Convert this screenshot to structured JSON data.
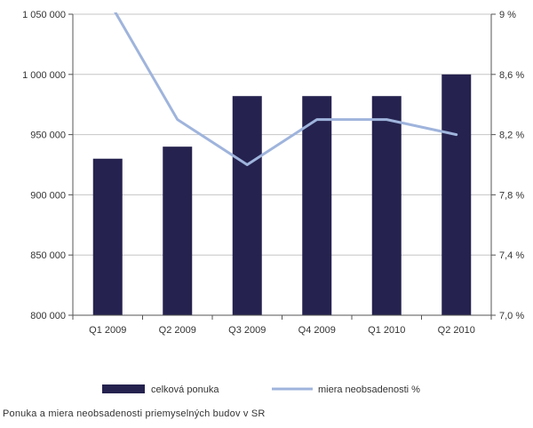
{
  "chart_data": {
    "type": "bar",
    "categories": [
      "Q1 2009",
      "Q2 2009",
      "Q3 2009",
      "Q4 2009",
      "Q1 2010",
      "Q2 2010"
    ],
    "series": [
      {
        "name": "celková ponuka",
        "type": "bar",
        "axis": "left",
        "values": [
          930000,
          940000,
          982000,
          982000,
          982000,
          1000000
        ]
      },
      {
        "name": "miera neobsadenosti %",
        "type": "line",
        "axis": "right",
        "values": [
          9.1,
          8.3,
          8.0,
          8.3,
          8.3,
          8.2
        ]
      }
    ],
    "y_left": {
      "lim": [
        800000,
        1050000
      ],
      "ticks": [
        800000,
        850000,
        900000,
        950000,
        1000000,
        1050000
      ],
      "tick_labels": [
        "800 000",
        "850 000",
        "900 000",
        "950 000",
        "1 000 000",
        "1 050 000"
      ]
    },
    "y_right": {
      "lim": [
        7.0,
        9.0
      ],
      "ticks": [
        7.0,
        7.4,
        7.8,
        8.2,
        8.6,
        9.0
      ],
      "tick_labels": [
        "7,0 %",
        "7,4 %",
        "7,8 %",
        "8,2 %",
        "8,6 %",
        "9 %"
      ]
    },
    "grid": true,
    "legend_position": "bottom",
    "caption": "Ponuka a miera neobsadenosti priemyselných budov v SR",
    "colors": {
      "bar": "#25224f",
      "line": "#9fb4dc",
      "grid": "#c6c6c6",
      "axis": "#555555",
      "text": "#333333"
    }
  }
}
